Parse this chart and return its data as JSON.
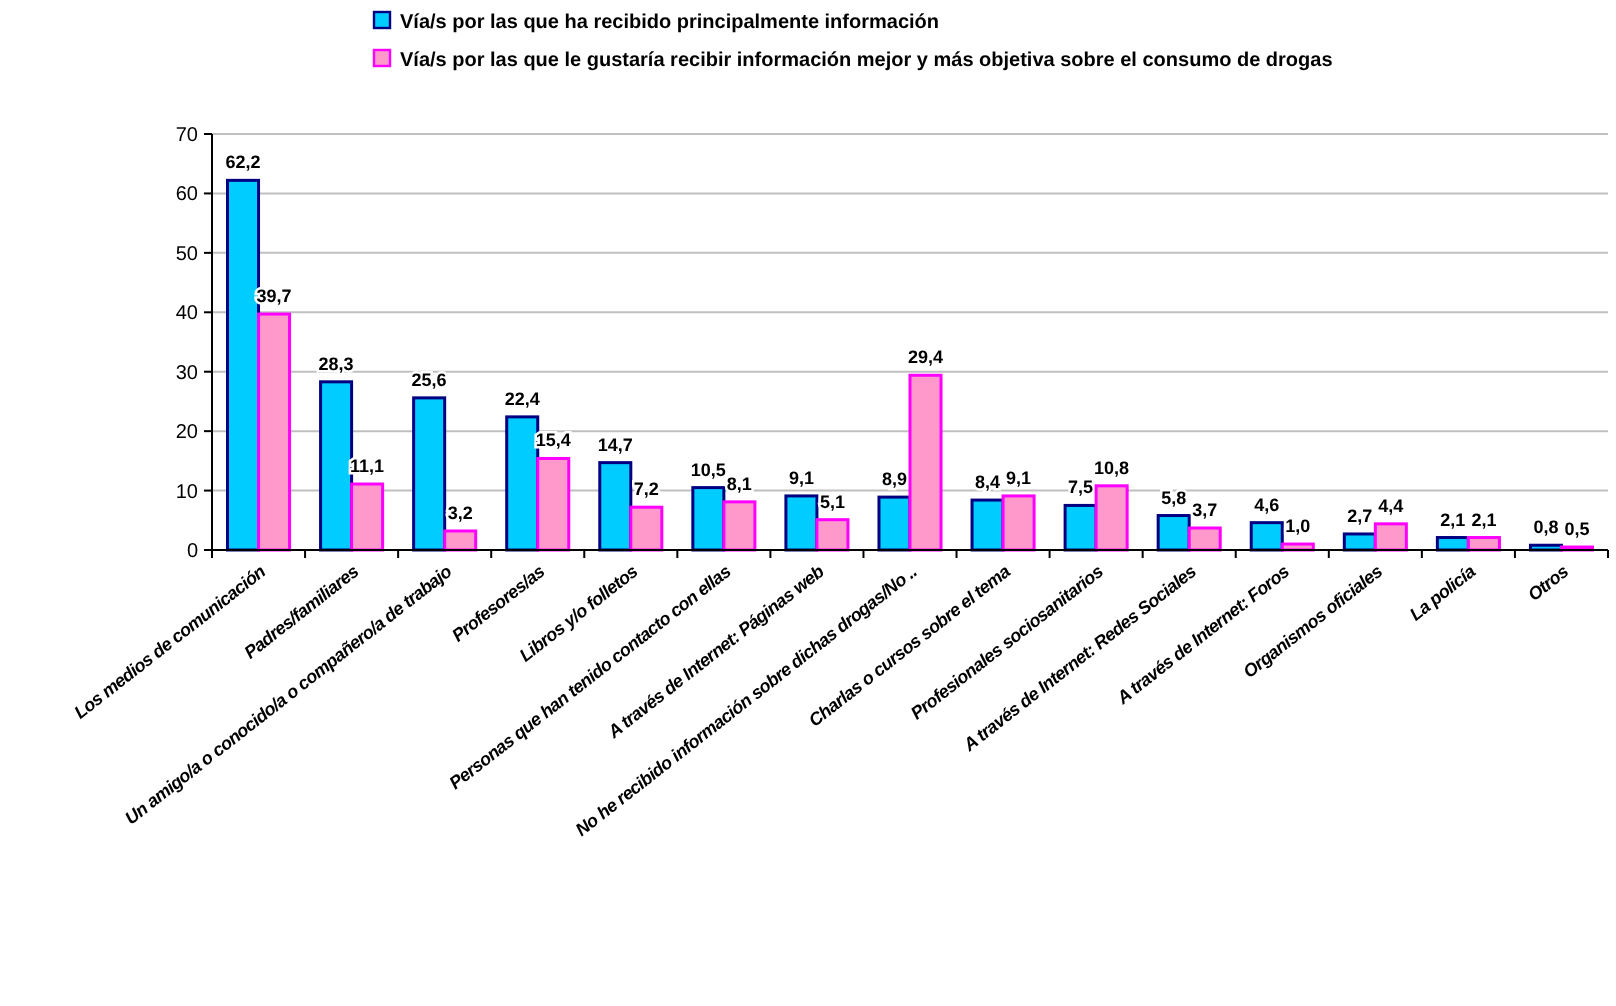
{
  "chart_data": {
    "type": "bar",
    "categories": [
      "Los medios de comunicación",
      "Padres/familiares",
      "Un amigo/a o conocido/a o compañero/a de trabajo",
      "Profesores/as",
      "Libros y/o folletos",
      "Personas que han tenido contacto con ellas",
      "A través de Internet: Páginas web",
      "No he recibido información sobre dichas drogas/No ..",
      "Charlas o cursos sobre el tema",
      "Profesionales sociosanitarios",
      "A través de Internet: Redes Sociales",
      "A través de Internet: Foros",
      "Organismos oficiales",
      "La policía",
      "Otros"
    ],
    "series": [
      {
        "name": "Vía/s por las que ha recibido principalmente información",
        "color": "#00ccff",
        "values": [
          62.2,
          28.3,
          25.6,
          22.4,
          14.7,
          10.5,
          9.1,
          8.9,
          8.4,
          7.5,
          5.8,
          4.6,
          2.7,
          2.1,
          0.8
        ],
        "value_labels": [
          "62,2",
          "28,3",
          "25,6",
          "22,4",
          "14,7",
          "10,5",
          "9,1",
          "8,9",
          "8,4",
          "7,5",
          "5,8",
          "4,6",
          "2,7",
          "2,1",
          "0,8"
        ]
      },
      {
        "name": "Vía/s por las que le gustaría recibir información mejor y más objetiva sobre el consumo de drogas",
        "color": "#ff99cc",
        "values": [
          39.7,
          11.1,
          3.2,
          15.4,
          7.2,
          8.1,
          5.1,
          29.4,
          9.1,
          10.8,
          3.7,
          1.0,
          4.4,
          2.1,
          0.5
        ],
        "value_labels": [
          "39,7",
          "11,1",
          "3,2",
          "15,4",
          "7,2",
          "8,1",
          "5,1",
          "29,4",
          "9,1",
          "10,8",
          "3,7",
          "1,0",
          "4,4",
          "2,1",
          "0,5"
        ]
      }
    ],
    "ylim": [
      0,
      70
    ],
    "yticks": [
      0,
      10,
      20,
      30,
      40,
      50,
      60,
      70
    ],
    "grid": "y",
    "legend": "top"
  }
}
